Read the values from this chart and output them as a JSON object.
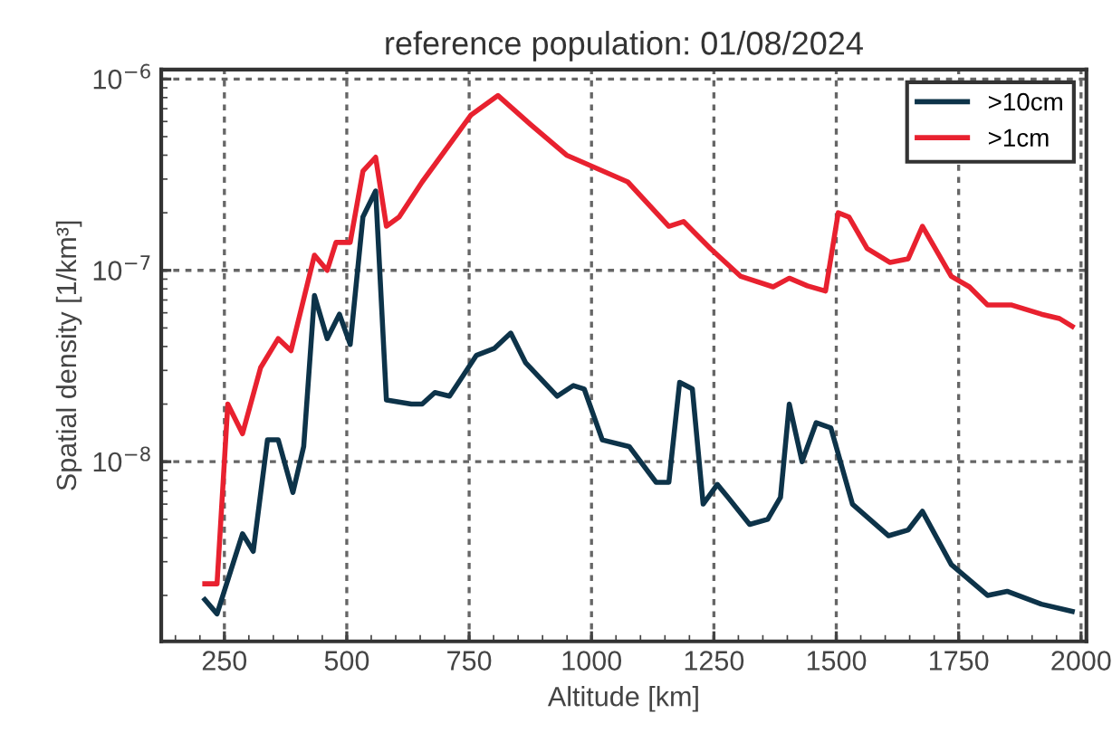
{
  "chart_data": {
    "type": "line",
    "title": "reference population: 01/08/2024",
    "xlabel": "Altitude [km]",
    "ylabel": "Spatial density [1/km³]",
    "log": "y",
    "grid": true,
    "legend": "top right",
    "line_style": "solid",
    "marker": "none",
    "xlim": [
      121,
      2011
    ],
    "xticks": [
      250,
      500,
      750,
      1000,
      1250,
      1500,
      1750,
      2000
    ],
    "ylim": [
      1.15e-09,
      1.12e-06
    ],
    "yticks": [
      {
        "value": 1e-08,
        "label": "10$^{−8}$"
      },
      {
        "value": 1e-07,
        "label": "10$^{−7}$"
      },
      {
        "value": 1e-06,
        "label": "10$^{−6}$"
      }
    ],
    "series": [
      {
        "name": ">10cm",
        "color": "#0d3349",
        "x": [
          210,
          235,
          287,
          309,
          338,
          360,
          390,
          412,
          434,
          460,
          485,
          507,
          533,
          559,
          581,
          632,
          654,
          680,
          710,
          765,
          801,
          835,
          865,
          930,
          963,
          985,
          1022,
          1077,
          1132,
          1158,
          1180,
          1206,
          1228,
          1257,
          1279,
          1323,
          1360,
          1386,
          1404,
          1430,
          1459,
          1489,
          1533,
          1607,
          1647,
          1676,
          1735,
          1809,
          1849,
          1919,
          1982
        ],
        "values": [
          1.9e-09,
          1.6e-09,
          4.2e-09,
          3.4e-09,
          1.3e-08,
          1.3e-08,
          6.9e-09,
          1.2e-08,
          7.4e-08,
          4.4e-08,
          5.9e-08,
          4.1e-08,
          1.9e-07,
          2.6e-07,
          2.1e-08,
          2e-08,
          2e-08,
          2.3e-08,
          2.2e-08,
          3.6e-08,
          3.9e-08,
          4.7e-08,
          3.3e-08,
          2.2e-08,
          2.5e-08,
          2.4e-08,
          1.3e-08,
          1.2e-08,
          7.8e-09,
          7.8e-09,
          2.6e-08,
          2.4e-08,
          6e-09,
          7.6e-09,
          6.5e-09,
          4.7e-09,
          5e-09,
          6.5e-09,
          2e-08,
          1e-08,
          1.6e-08,
          1.5e-08,
          6e-09,
          4.1e-09,
          4.4e-09,
          5.5e-09,
          2.9e-09,
          2e-09,
          2.1e-09,
          1.8e-09,
          1.65e-09
        ]
      },
      {
        "name": ">1cm",
        "color": "#e8212f",
        "x": [
          210,
          235,
          257,
          287,
          324,
          360,
          386,
          434,
          460,
          478,
          507,
          533,
          559,
          581,
          607,
          654,
          754,
          809,
          875,
          949,
          1074,
          1158,
          1188,
          1243,
          1305,
          1371,
          1404,
          1441,
          1478,
          1504,
          1526,
          1563,
          1610,
          1647,
          1676,
          1735,
          1772,
          1809,
          1857,
          1919,
          1956,
          1982
        ],
        "values": [
          2.3e-09,
          2.3e-09,
          2e-08,
          1.4e-08,
          3.1e-08,
          4.4e-08,
          3.8e-08,
          1.2e-07,
          1e-07,
          1.4e-07,
          1.4e-07,
          3.3e-07,
          3.9e-07,
          1.7e-07,
          1.9e-07,
          2.9e-07,
          6.5e-07,
          8.2e-07,
          5.8e-07,
          4e-07,
          2.9e-07,
          1.7e-07,
          1.8e-07,
          1.3e-07,
          9.3e-08,
          8.2e-08,
          9.1e-08,
          8.3e-08,
          7.8e-08,
          2e-07,
          1.9e-07,
          1.3e-07,
          1.1e-07,
          1.15e-07,
          1.7e-07,
          9.3e-08,
          8.2e-08,
          6.6e-08,
          6.6e-08,
          5.9e-08,
          5.6e-08,
          5.1e-08
        ]
      }
    ]
  }
}
